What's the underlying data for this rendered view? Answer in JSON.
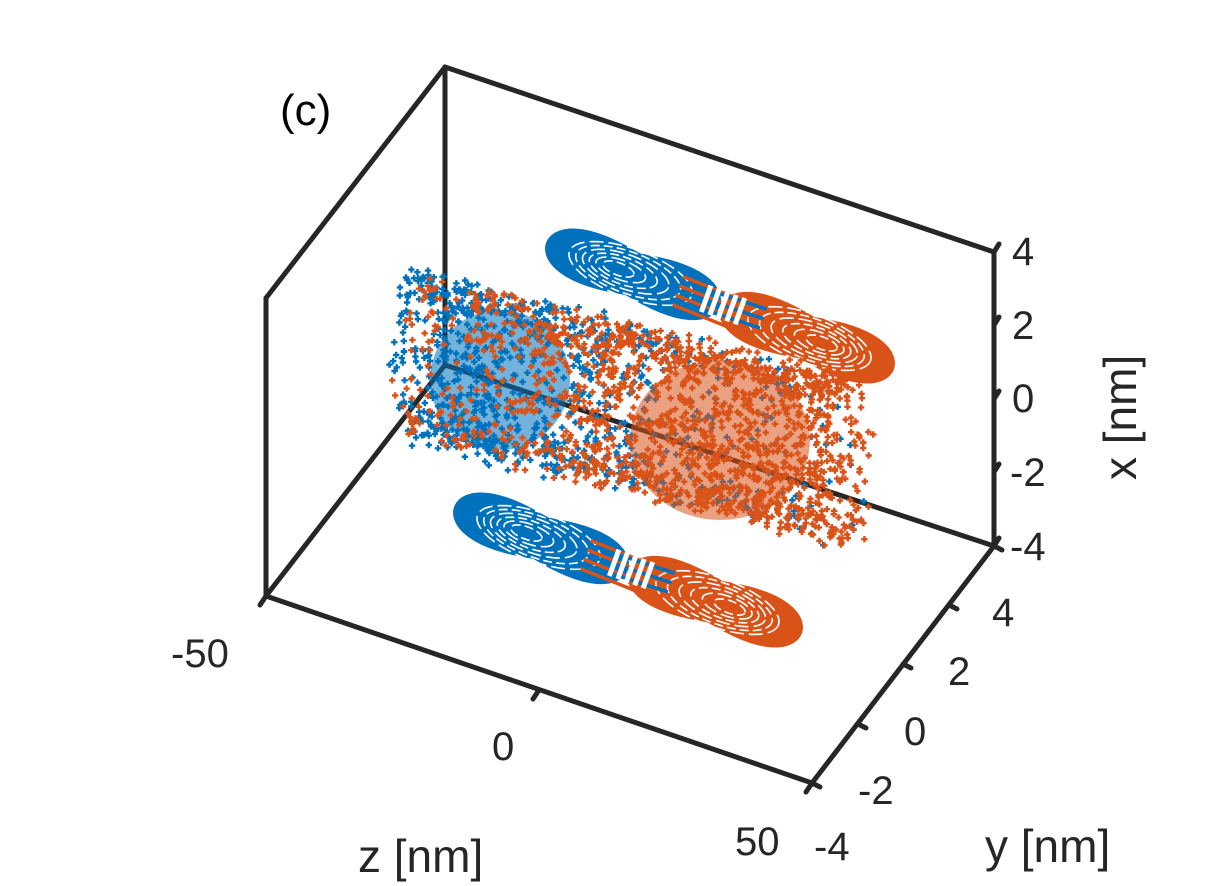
{
  "chart_data": {
    "type": "scatter",
    "panel_label": "(c)",
    "xlabel": "z [nm]",
    "ylabel": "y [nm]",
    "zlabel": "x [nm]",
    "z_ticks": [
      "-50",
      "0",
      "50"
    ],
    "y_ticks": [
      "-4",
      "-2",
      "0",
      "2",
      "4"
    ],
    "x_ticks": [
      "-4",
      "-2",
      "0",
      "2",
      "4"
    ],
    "z_range": [
      -50,
      50
    ],
    "y_range": [
      -4,
      4
    ],
    "x_range": [
      -4,
      4
    ],
    "grid": false,
    "box": true,
    "view": "3d",
    "colors": {
      "series_a": "#0072BD",
      "series_b": "#D95319",
      "axes": "#262626"
    },
    "series": [
      {
        "color": "#0072BD",
        "marker": "+",
        "z_extent": [
          -50,
          10
        ],
        "description_region": "left half of cylinder + left lobe of each projection"
      },
      {
        "color": "#D95319",
        "marker": "+",
        "z_extent": [
          -10,
          50
        ],
        "description_region": "right half of cylinder + right lobe of each projection"
      }
    ]
  }
}
